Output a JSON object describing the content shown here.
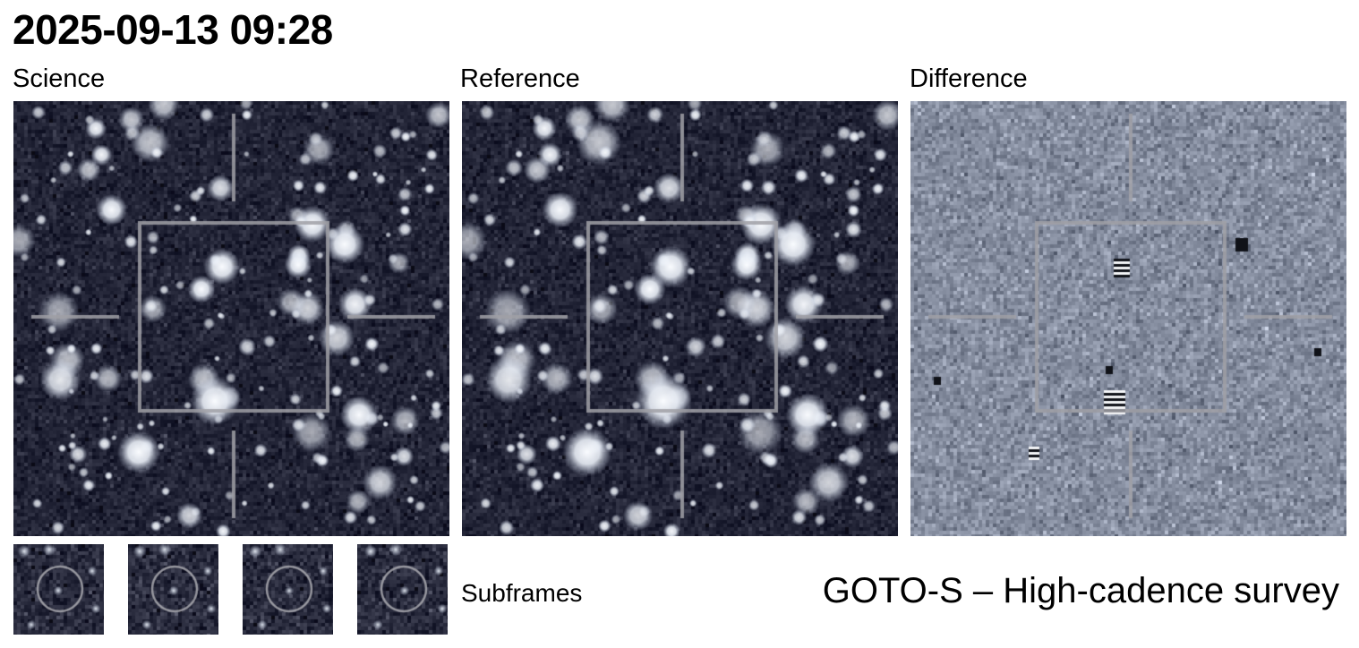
{
  "header": {
    "timestamp": "2025-09-13 09:28"
  },
  "panels": [
    {
      "label": "Science",
      "kind": "science"
    },
    {
      "label": "Reference",
      "kind": "reference"
    },
    {
      "label": "Difference",
      "kind": "difference"
    }
  ],
  "subframes": {
    "label": "Subframes",
    "count": 4
  },
  "footer": {
    "survey": "GOTO-S – High-cadence survey"
  },
  "colors": {
    "sky_dark": "#2a2c42",
    "star": "#f4f6f8",
    "diff_bg": "#8a94a6",
    "overlay": "#a0a0a6"
  }
}
